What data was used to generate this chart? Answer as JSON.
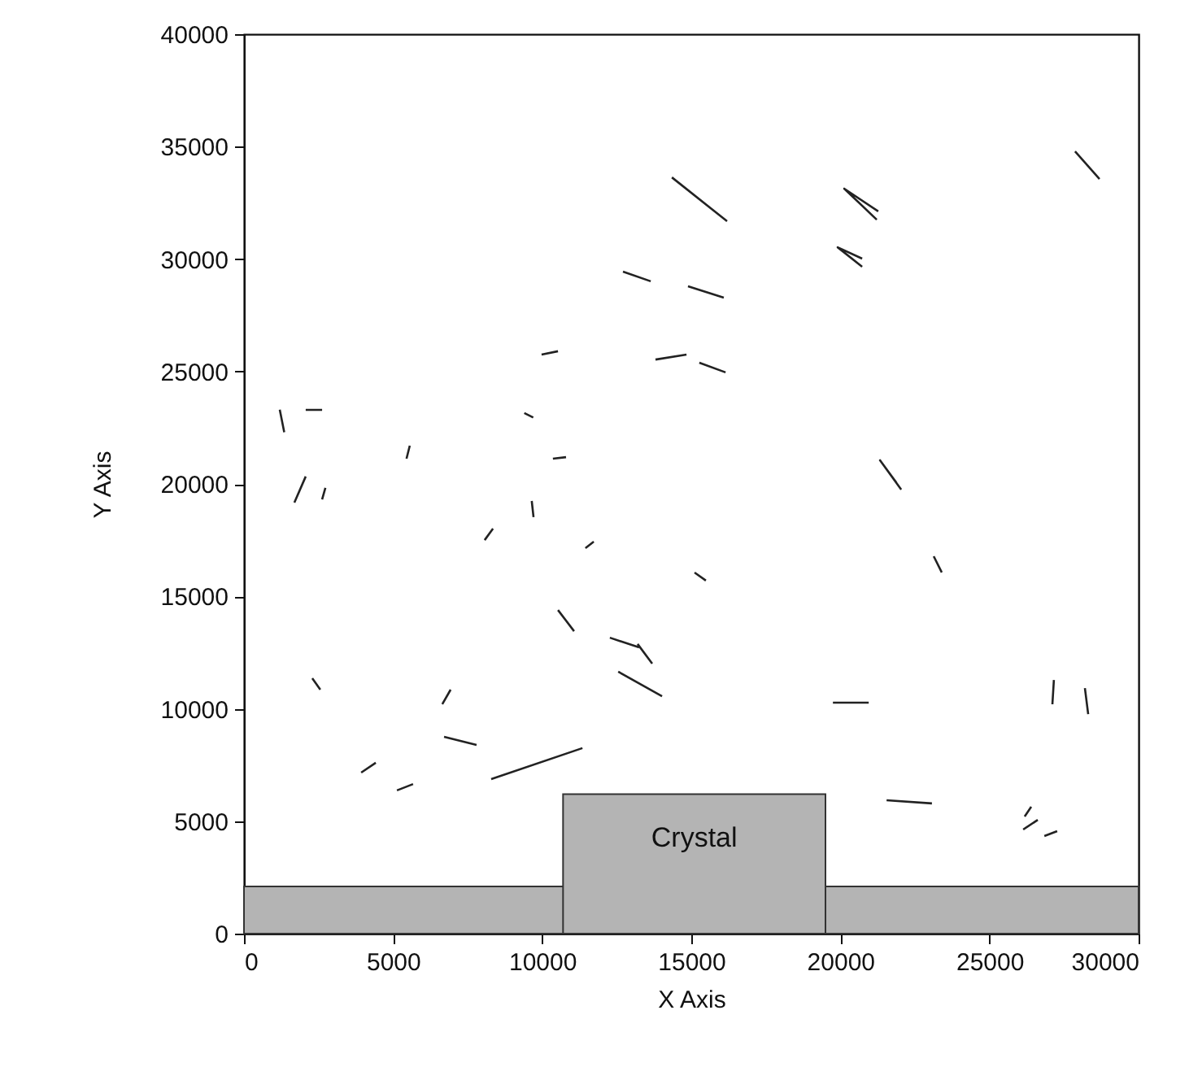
{
  "chart_data": {
    "type": "line",
    "xlabel": "X Axis",
    "ylabel": "Y Axis",
    "xlim": [
      0,
      30000
    ],
    "ylim": [
      0,
      40000
    ],
    "xticks": [
      0,
      5000,
      10000,
      15000,
      20000,
      25000,
      30000
    ],
    "yticks": [
      0,
      5000,
      10000,
      15000,
      20000,
      25000,
      30000,
      35000,
      40000
    ],
    "annotations": [
      "Crystal"
    ],
    "series": [
      {
        "type": "area",
        "color": "#b4b4b4",
        "x": [
          0,
          30000
        ],
        "values": [
          2100,
          2100
        ]
      },
      {
        "type": "area",
        "color": "#b4b4b4",
        "x": [
          10700,
          19500
        ],
        "values": [
          6200,
          6200
        ]
      },
      {
        "color": "#222222",
        "x": [
          1200,
          1350,
          null,
          2070,
          2620,
          null,
          1690,
          2070,
          null,
          2620,
          2730,
          null,
          5560,
          5450,
          null,
          9400,
          9700,
          null,
          9650,
          9710,
          null,
          8070,
          8350,
          null,
          2290,
          2560,
          null,
          6650,
          6930,
          null,
          6710,
          7800,
          null,
          3930,
          4420,
          null,
          5130,
          5670,
          null,
          8290,
          11350,
          null,
          11450,
          11730,
          null,
          10530,
          11070,
          null,
          12270,
          13250,
          null,
          13200,
          13690,
          null,
          12550,
          14020,
          null,
          15110,
          15490,
          null,
          10360,
          10800,
          null,
          9980,
          10530,
          null,
          13800,
          14840,
          null,
          15270,
          16150,
          null,
          12710,
          13640,
          null,
          14890,
          16090,
          null,
          14350,
          16200,
          null,
          21270,
          20130,
          21220,
          null,
          20730,
          19910,
          20730,
          null,
          27870,
          28690,
          null,
          22040,
          21330,
          21880,
          null,
          23130,
          23400,
          null,
          19750,
          20950,
          null,
          27160,
          27110,
          null,
          28200,
          28310,
          null,
          21550,
          23070,
          null,
          26180,
          26400,
          null,
          26130,
          26620,
          null,
          26840,
          27270
        ],
        "values": [
          23300,
          22300,
          null,
          23290,
          23290,
          null,
          19170,
          20330,
          null,
          19310,
          19820,
          null,
          21700,
          21120,
          null,
          23150,
          22950,
          null,
          19240,
          18520,
          null,
          17500,
          18010,
          null,
          11360,
          10850,
          null,
          10200,
          10850,
          null,
          8750,
          8390,
          null,
          7160,
          7600,
          null,
          6370,
          6650,
          null,
          6870,
          8250,
          null,
          17140,
          17430,
          null,
          14390,
          13450,
          null,
          13160,
          12730,
          null,
          12880,
          12010,
          null,
          11650,
          10560,
          null,
          16060,
          15700,
          null,
          21120,
          21190,
          null,
          25750,
          25900,
          null,
          25530,
          25750,
          null,
          25390,
          24960,
          null,
          29440,
          29010,
          null,
          28790,
          28280,
          null,
          33630,
          31680,
          null,
          32120,
          33130,
          31750,
          null,
          30020,
          30520,
          29660,
          null,
          34790,
          33560,
          null,
          19750,
          21050,
          20050,
          null,
          16780,
          16060,
          null,
          10270,
          10270,
          null,
          11280,
          10200,
          null,
          10920,
          9760,
          null,
          5930,
          5790,
          null,
          5210,
          5640,
          null,
          4630,
          5060,
          null,
          4340,
          4560
        ]
      }
    ]
  }
}
